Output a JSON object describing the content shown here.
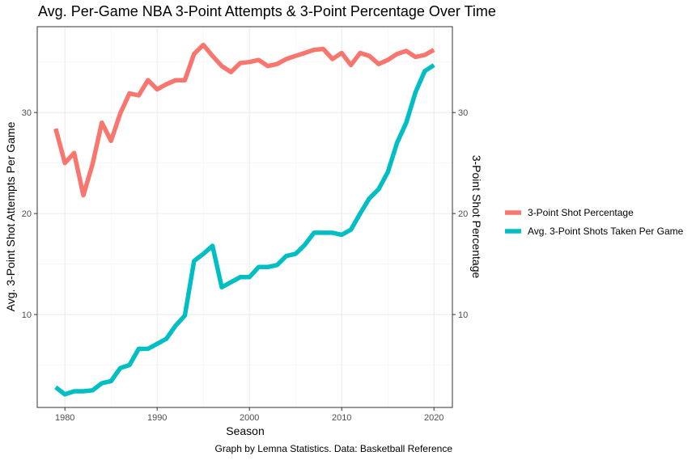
{
  "chart_data": {
    "type": "line",
    "title": "Avg. Per-Game NBA 3-Point Attempts & 3-Point Percentage Over Time",
    "xlabel": "Season",
    "ylabel": "Avg. 3-Point Shot Attempts Per Game",
    "y2label": "3-Point Shot Percentage",
    "caption": "Graph by Lemna Statistics. Data: Basketball Reference",
    "xlim": [
      1977,
      2022
    ],
    "ylim": [
      0.8,
      38.5
    ],
    "x_ticks": [
      1980,
      1990,
      2000,
      2010,
      2020
    ],
    "y_ticks": [
      10,
      20,
      30
    ],
    "y2_ticks": [
      10,
      20,
      30
    ],
    "legend_position": "right",
    "grid": true,
    "x": [
      1979,
      1980,
      1981,
      1982,
      1983,
      1984,
      1985,
      1986,
      1987,
      1988,
      1989,
      1990,
      1991,
      1992,
      1993,
      1994,
      1995,
      1996,
      1997,
      1998,
      1999,
      2000,
      2001,
      2002,
      2003,
      2004,
      2005,
      2006,
      2007,
      2008,
      2009,
      2010,
      2011,
      2012,
      2013,
      2014,
      2015,
      2016,
      2017,
      2018,
      2019,
      2020
    ],
    "series": [
      {
        "name": "3-Point Shot Percentage",
        "color": "#F8766D",
        "values": [
          28.4,
          25.0,
          26.0,
          21.8,
          24.9,
          29.0,
          27.2,
          29.9,
          31.9,
          31.7,
          33.2,
          32.3,
          32.8,
          33.2,
          33.2,
          35.8,
          36.7,
          35.6,
          34.6,
          34.0,
          34.9,
          35.0,
          35.2,
          34.6,
          34.8,
          35.3,
          35.6,
          35.9,
          36.2,
          36.3,
          35.3,
          35.9,
          34.7,
          35.9,
          35.6,
          34.8,
          35.2,
          35.8,
          36.1,
          35.5,
          35.7,
          36.2
        ]
      },
      {
        "name": "Avg. 3-Point Shots Taken Per Game",
        "color": "#00BFC4",
        "values": [
          2.8,
          2.1,
          2.4,
          2.4,
          2.5,
          3.2,
          3.4,
          4.7,
          5.0,
          6.6,
          6.6,
          7.1,
          7.6,
          8.9,
          9.9,
          15.3,
          16.0,
          16.8,
          12.7,
          13.2,
          13.7,
          13.7,
          14.7,
          14.7,
          14.9,
          15.8,
          16.0,
          16.9,
          18.1,
          18.1,
          18.1,
          17.9,
          18.4,
          20.0,
          21.5,
          22.4,
          24.1,
          27.0,
          29.0,
          32.0,
          34.1,
          34.7
        ]
      }
    ]
  }
}
